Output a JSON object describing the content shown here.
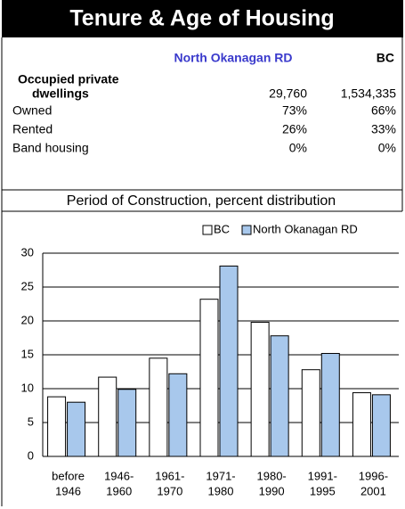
{
  "header": {
    "title": "Tenure & Age of Housing"
  },
  "table": {
    "columns": [
      "North Okanagan RD",
      "BC"
    ],
    "rows": [
      {
        "label": [
          "Occupied private",
          "dwellings"
        ],
        "values": [
          "29,760",
          "1,534,335"
        ]
      },
      {
        "label": [
          "Owned"
        ],
        "values": [
          "73%",
          "66%"
        ]
      },
      {
        "label": [
          "Rented"
        ],
        "values": [
          "26%",
          "33%"
        ]
      },
      {
        "label": [
          "Band housing"
        ],
        "values": [
          "0%",
          "0%"
        ]
      }
    ]
  },
  "chart_data": {
    "type": "bar",
    "title": "Period of Construction, percent distribution",
    "categories": [
      [
        "before",
        "1946"
      ],
      [
        "1946-",
        "1960"
      ],
      [
        "1961-",
        "1970"
      ],
      [
        "1971-",
        "1980"
      ],
      [
        "1980-",
        "1990"
      ],
      [
        "1991-",
        "1995"
      ],
      [
        "1996-",
        "2001"
      ]
    ],
    "series": [
      {
        "name": "BC",
        "color": "#ffffff",
        "values": [
          8.8,
          11.7,
          14.5,
          23.2,
          19.8,
          12.8,
          9.4
        ]
      },
      {
        "name": "North Okanagan RD",
        "color": "#a8c8ec",
        "values": [
          8.0,
          9.9,
          12.2,
          28.1,
          17.8,
          15.2,
          9.1
        ]
      }
    ],
    "ylim": [
      0,
      30
    ],
    "yticks": [
      0,
      5,
      10,
      15,
      20,
      25,
      30
    ],
    "grid": true,
    "legend": "top"
  }
}
